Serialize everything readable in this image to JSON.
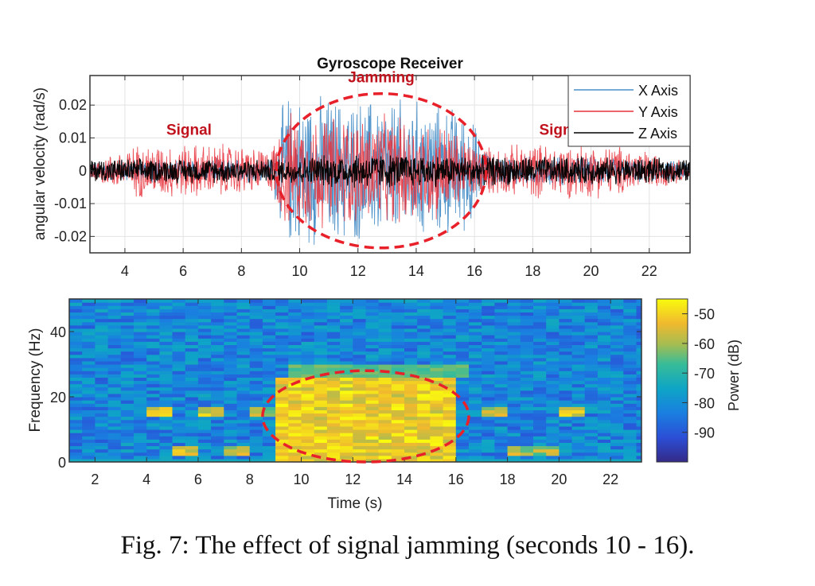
{
  "figure": {
    "caption": "Fig. 7: The effect of signal jamming (seconds 10 - 16)."
  },
  "chart_data": [
    {
      "type": "line",
      "title": "Gyroscope Receiver",
      "xlabel": "",
      "ylabel": "angular velocity (rad/s)",
      "xlim": [
        2.8,
        23.4
      ],
      "ylim": [
        -0.025,
        0.029
      ],
      "xticks": [
        4,
        6,
        8,
        10,
        12,
        14,
        16,
        18,
        20,
        22
      ],
      "yticks": [
        -0.02,
        -0.01,
        0,
        0.01,
        0.02
      ],
      "ytick_labels": [
        "-0.02",
        "-0.01",
        "0",
        "0.01",
        "0.02"
      ],
      "grid": true,
      "legend": {
        "placement": "top-right"
      },
      "series": [
        {
          "name": "X Axis",
          "color": "#4a90c8",
          "envelope": {
            "x": [
              2.8,
              4.5,
              5.5,
              7.5,
              9.0,
              9.5,
              10.5,
              12.0,
              13.5,
              15.0,
              15.8,
              16.5,
              18.0,
              20.0,
              21.3,
              23.4
            ],
            "amplitude": [
              0.003,
              0.004,
              0.004,
              0.004,
              0.004,
              0.025,
              0.025,
              0.024,
              0.024,
              0.022,
              0.02,
              0.005,
              0.005,
              0.005,
              0.004,
              0.003
            ]
          }
        },
        {
          "name": "Y Axis",
          "color": "#e8303a",
          "envelope": {
            "x": [
              2.8,
              4.5,
              5.5,
              7.5,
              9.0,
              9.5,
              10.5,
              12.0,
              13.5,
              15.0,
              15.8,
              16.5,
              18.0,
              20.0,
              21.3,
              23.4
            ],
            "amplitude": [
              0.003,
              0.009,
              0.009,
              0.009,
              0.007,
              0.019,
              0.019,
              0.018,
              0.018,
              0.016,
              0.01,
              0.008,
              0.009,
              0.009,
              0.008,
              0.003
            ]
          }
        },
        {
          "name": "Z Axis",
          "color": "#000000",
          "envelope": {
            "x": [
              2.8,
              9.0,
              12.0,
              16.0,
              23.4
            ],
            "amplitude": [
              0.004,
              0.004,
              0.006,
              0.005,
              0.004
            ]
          }
        }
      ],
      "annotations": [
        {
          "text": "Signal",
          "x": 6.2,
          "y": 0.011,
          "color": "#c0121c"
        },
        {
          "text": "Jamming",
          "x": 12.8,
          "y": 0.027,
          "color": "#c0121c"
        },
        {
          "text": "Signal",
          "x": 19.0,
          "y": 0.011,
          "color": "#c0121c"
        }
      ],
      "highlight_ellipse": {
        "x_center": 12.8,
        "y_center": 0.0,
        "x_radius": 3.6,
        "y_radius": 0.0235,
        "color": "#e8202a",
        "style": "dashed"
      }
    },
    {
      "type": "heatmap",
      "title": "",
      "xlabel": "Time (s)",
      "ylabel": "Frequency (Hz)",
      "xlim": [
        1.0,
        23.2
      ],
      "ylim": [
        0,
        50
      ],
      "xticks": [
        2,
        4,
        6,
        8,
        10,
        12,
        14,
        16,
        18,
        20,
        22
      ],
      "yticks": [
        0,
        20,
        40
      ],
      "colorbar": {
        "label": "Power (dB)",
        "range": [
          -100,
          -45
        ],
        "ticks": [
          -50,
          -60,
          -70,
          -80,
          -90
        ],
        "colormap": "parula"
      },
      "grid": false,
      "description": "Background power ~ -85 to -75 dB; jamming region 9-16 s strong power (-50 to -55 dB) below ~25 Hz; signal bands near 15 Hz and 3 Hz during 4-8 s and 16.5-21 s (~-60 dB).",
      "hot_regions": [
        {
          "t": [
            9.2,
            16.0
          ],
          "f": [
            0,
            26
          ],
          "power_db": -52
        },
        {
          "t": [
            4.1,
            5.1
          ],
          "f": [
            14,
            17
          ],
          "power_db": -55
        },
        {
          "t": [
            6.2,
            7.2
          ],
          "f": [
            14,
            17
          ],
          "power_db": -55
        },
        {
          "t": [
            5.1,
            6.2
          ],
          "f": [
            2,
            5
          ],
          "power_db": -57
        },
        {
          "t": [
            7.2,
            8.2
          ],
          "f": [
            2,
            5
          ],
          "power_db": -58
        },
        {
          "t": [
            8.2,
            9.2
          ],
          "f": [
            14,
            17
          ],
          "power_db": -60
        },
        {
          "t": [
            17.2,
            18.2
          ],
          "f": [
            14,
            17
          ],
          "power_db": -58
        },
        {
          "t": [
            20.2,
            21.2
          ],
          "f": [
            14,
            17
          ],
          "power_db": -55
        },
        {
          "t": [
            18.2,
            20.2
          ],
          "f": [
            2,
            5
          ],
          "power_db": -60
        }
      ],
      "highlight_ellipse": {
        "x_center": 12.5,
        "y_center": 14,
        "x_radius": 4.0,
        "y_radius": 14,
        "color": "#e8202a",
        "style": "dashed"
      }
    }
  ]
}
